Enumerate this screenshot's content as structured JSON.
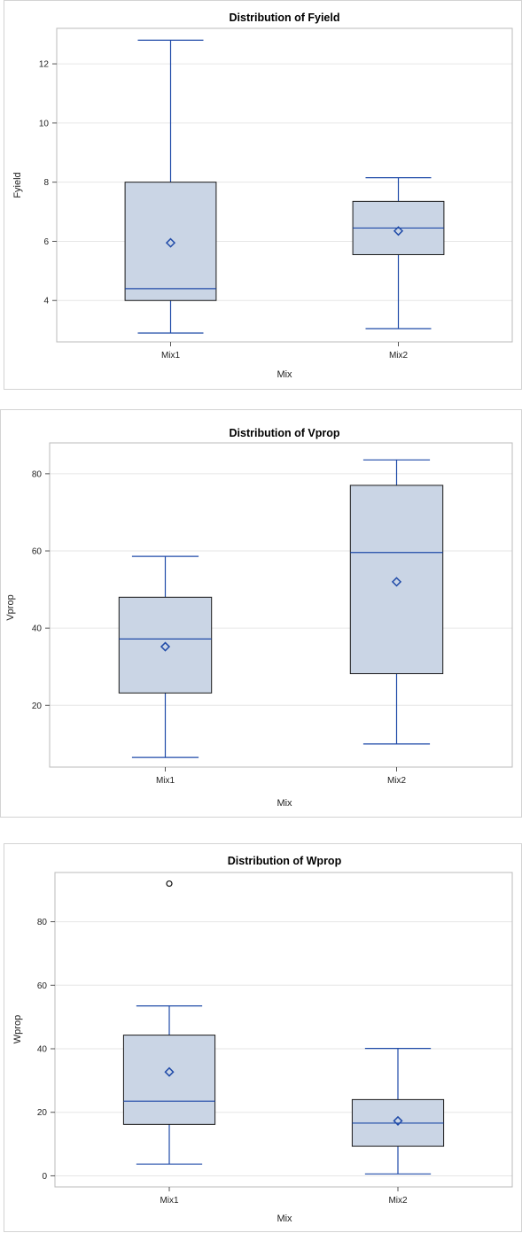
{
  "colors": {
    "box_fill": "#CAD5E5",
    "box_border": "#1A1A1A",
    "line": "#1F4AA8",
    "grid": "#E6E6E6",
    "frame": "#BBBBBB",
    "panel_border": "#D3D3D3"
  },
  "chart_data": [
    {
      "type": "boxplot",
      "title": "Distribution of Fyield",
      "xlabel": "Mix",
      "ylabel": "Fyield",
      "ylim": [
        2.6,
        13.2
      ],
      "yticks": [
        4,
        6,
        8,
        10,
        12
      ],
      "grid": true,
      "categories": [
        "Mix1",
        "Mix2"
      ],
      "boxes": [
        {
          "category": "Mix1",
          "min": 2.9,
          "q1": 4.0,
          "median": 4.4,
          "q3": 8.0,
          "max": 12.8,
          "mean": 5.95,
          "outliers": []
        },
        {
          "category": "Mix2",
          "min": 3.05,
          "q1": 5.55,
          "median": 6.45,
          "q3": 7.35,
          "max": 8.15,
          "mean": 6.35,
          "outliers": []
        }
      ]
    },
    {
      "type": "boxplot",
      "title": "Distribution of Vprop",
      "xlabel": "Mix",
      "ylabel": "Vprop",
      "ylim": [
        4,
        88
      ],
      "yticks": [
        20,
        40,
        60,
        80
      ],
      "grid": true,
      "categories": [
        "Mix1",
        "Mix2"
      ],
      "boxes": [
        {
          "category": "Mix1",
          "min": 6.5,
          "q1": 23.2,
          "median": 37.2,
          "q3": 48.0,
          "max": 58.6,
          "mean": 35.2,
          "outliers": []
        },
        {
          "category": "Mix2",
          "min": 10.0,
          "q1": 28.2,
          "median": 59.6,
          "q3": 77.0,
          "max": 83.6,
          "mean": 52.0,
          "outliers": []
        }
      ]
    },
    {
      "type": "boxplot",
      "title": "Distribution of Wprop",
      "xlabel": "Mix",
      "ylabel": "Wprop",
      "ylim": [
        -3.5,
        95.5
      ],
      "yticks": [
        0,
        20,
        40,
        60,
        80
      ],
      "grid": true,
      "categories": [
        "Mix1",
        "Mix2"
      ],
      "boxes": [
        {
          "category": "Mix1",
          "min": 3.7,
          "q1": 16.2,
          "median": 23.5,
          "q3": 44.3,
          "max": 53.5,
          "mean": 32.7,
          "outliers": [
            92.0
          ]
        },
        {
          "category": "Mix2",
          "min": 0.6,
          "q1": 9.3,
          "median": 16.6,
          "q3": 24.0,
          "max": 40.1,
          "mean": 17.3,
          "outliers": []
        }
      ]
    }
  ]
}
